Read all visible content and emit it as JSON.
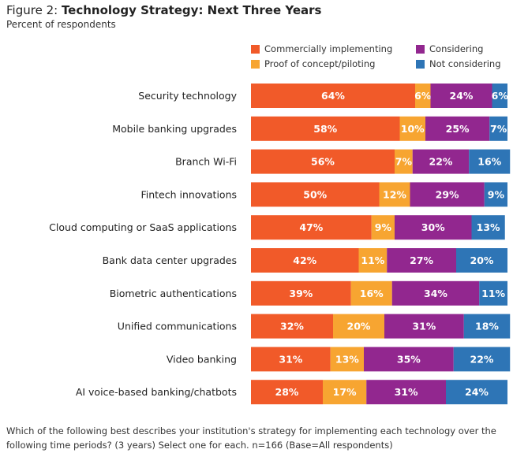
{
  "figure": {
    "title_lead": "Figure 2: ",
    "title_bold": "Technology Strategy: Next Three Years",
    "subtitle": "Percent of respondents"
  },
  "legend": [
    {
      "name": "Commercially implementing",
      "color": "#F15A29"
    },
    {
      "name": "Proof of concept/piloting",
      "color": "#F7A531"
    },
    {
      "name": "Considering",
      "color": "#92278F"
    },
    {
      "name": "Not considering",
      "color": "#2E75B6"
    }
  ],
  "footnote": "Which of the following best describes your institution's strategy for implementing each technology over the following time periods? (3 years) Select one for each. n=166 (Base=All respondents)",
  "chart_data": {
    "type": "bar",
    "orientation": "horizontal",
    "stacked": true,
    "unit": "%",
    "categories": [
      "Security technology",
      "Mobile banking upgrades",
      "Branch Wi-Fi",
      "Fintech innovations",
      "Cloud computing or SaaS applications",
      "Bank data center upgrades",
      "Biometric authentications",
      "Unified communications",
      "Video banking",
      "AI voice-based banking/chatbots"
    ],
    "series": [
      {
        "name": "Commercially implementing",
        "color": "#F15A29",
        "values": [
          64,
          58,
          56,
          50,
          47,
          42,
          39,
          32,
          31,
          28
        ]
      },
      {
        "name": "Proof of concept/piloting",
        "color": "#F7A531",
        "values": [
          6,
          10,
          7,
          12,
          9,
          11,
          16,
          20,
          13,
          17
        ]
      },
      {
        "name": "Considering",
        "color": "#92278F",
        "values": [
          24,
          25,
          22,
          29,
          30,
          27,
          34,
          31,
          35,
          31
        ]
      },
      {
        "name": "Not considering",
        "color": "#2E75B6",
        "values": [
          6,
          7,
          16,
          9,
          13,
          20,
          11,
          18,
          22,
          24
        ]
      }
    ],
    "xlim": [
      0,
      100
    ]
  }
}
